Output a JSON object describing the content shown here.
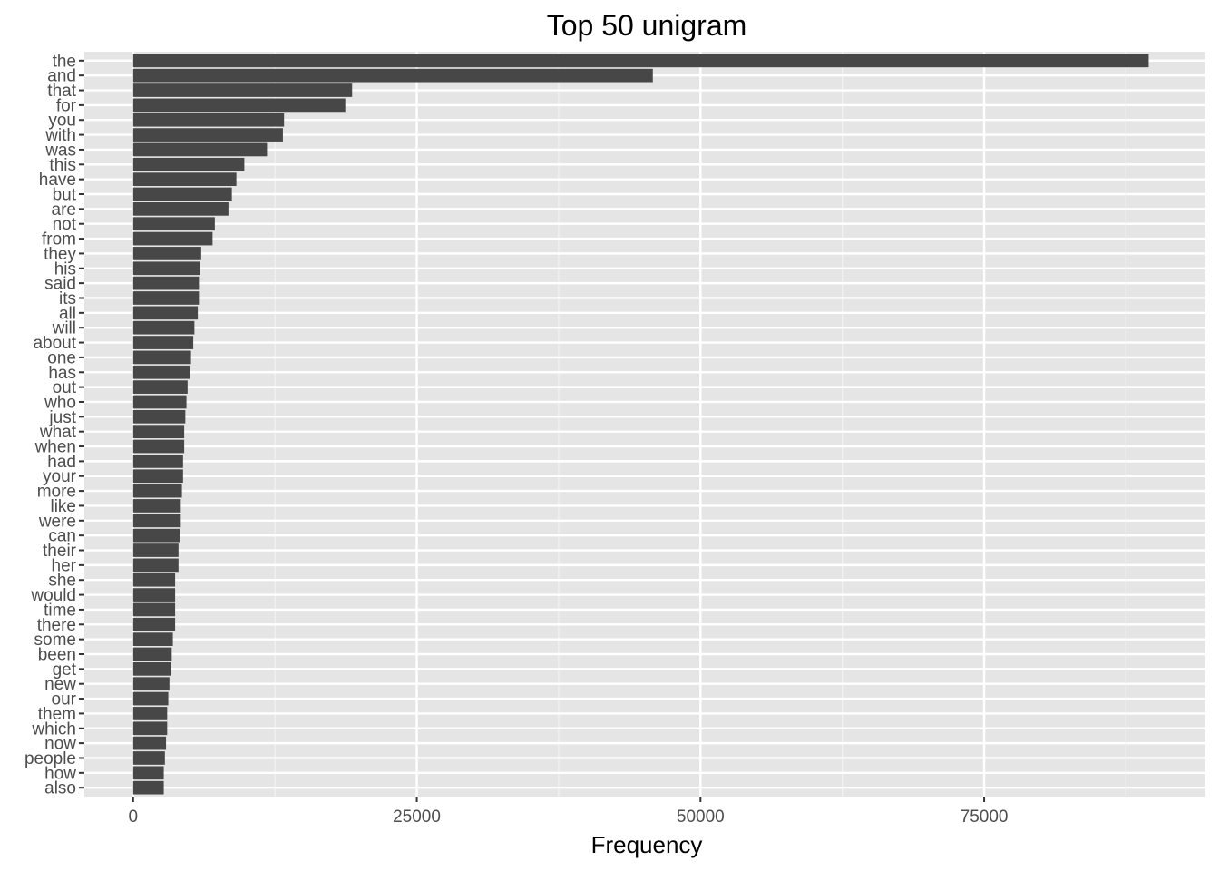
{
  "chart_data": {
    "type": "bar",
    "orientation": "horizontal",
    "title": "Top 50 unigram",
    "xlabel": "Frequency",
    "ylabel": "",
    "xlim": [
      -4300,
      94500
    ],
    "xticks": [
      0,
      25000,
      50000,
      75000
    ],
    "xtick_labels": [
      "0",
      "25000",
      "50000",
      "75000"
    ],
    "grid": true,
    "bar_color": "#474747",
    "panel_color": "#e5e5e5",
    "categories": [
      "the",
      "and",
      "that",
      "for",
      "you",
      "with",
      "was",
      "this",
      "have",
      "but",
      "are",
      "not",
      "from",
      "they",
      "his",
      "said",
      "its",
      "all",
      "will",
      "about",
      "one",
      "has",
      "out",
      "who",
      "just",
      "what",
      "when",
      "had",
      "your",
      "more",
      "like",
      "were",
      "can",
      "their",
      "her",
      "she",
      "would",
      "time",
      "there",
      "some",
      "been",
      "get",
      "new",
      "our",
      "them",
      "which",
      "now",
      "people",
      "how",
      "also"
    ],
    "values": [
      89500,
      45800,
      19300,
      18700,
      13300,
      13200,
      11800,
      9800,
      9100,
      8700,
      8400,
      7200,
      7000,
      6000,
      5900,
      5800,
      5800,
      5700,
      5400,
      5300,
      5100,
      5000,
      4800,
      4700,
      4600,
      4500,
      4500,
      4400,
      4400,
      4300,
      4200,
      4200,
      4100,
      4000,
      4000,
      3700,
      3700,
      3700,
      3700,
      3500,
      3400,
      3300,
      3200,
      3100,
      3000,
      3000,
      2900,
      2800,
      2700,
      2700
    ]
  }
}
